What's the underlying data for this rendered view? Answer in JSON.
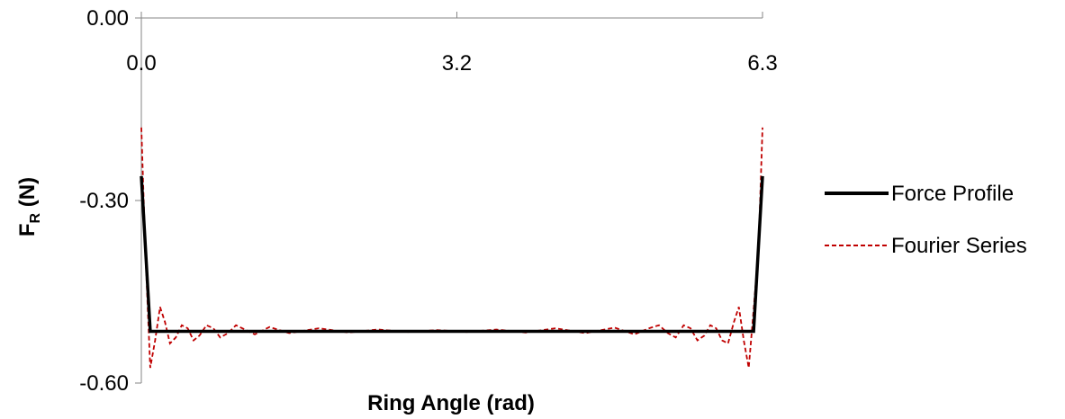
{
  "chart_data": {
    "type": "line",
    "xlabel": "Ring Angle (rad)",
    "ylabel": {
      "main": "F",
      "sub": "R",
      "rest": " (N)"
    },
    "xlim": [
      0,
      6.3
    ],
    "ylim": [
      -0.6,
      0.0
    ],
    "x_ticks": [
      {
        "value": 0.0,
        "label": "0.0"
      },
      {
        "value": 3.2,
        "label": "3.2"
      },
      {
        "value": 6.3,
        "label": "6.3"
      }
    ],
    "y_ticks": [
      {
        "value": 0.0,
        "label": "0.00"
      },
      {
        "value": -0.3,
        "label": "-0.30"
      },
      {
        "value": -0.6,
        "label": "-0.60"
      }
    ],
    "grid": false,
    "legend_position": "right",
    "series": [
      {
        "name": "Force Profile",
        "color": "#000000",
        "style": "solid",
        "x": [
          0.0,
          0.09,
          6.21,
          6.3
        ],
        "y": [
          -0.26,
          -0.515,
          -0.515,
          -0.26
        ]
      },
      {
        "name": "Fourier Series",
        "color": "#c00000",
        "style": "dashed",
        "x": [
          0.0,
          0.04,
          0.09,
          0.14,
          0.19,
          0.24,
          0.29,
          0.35,
          0.41,
          0.47,
          0.53,
          0.59,
          0.66,
          0.73,
          0.8,
          0.88,
          0.96,
          1.05,
          1.15,
          1.3,
          1.5,
          1.8,
          2.1,
          2.4,
          2.7,
          3.0,
          3.3,
          3.6,
          3.9,
          4.2,
          4.5,
          4.8,
          5.0,
          5.15,
          5.25,
          5.34,
          5.42,
          5.5,
          5.57,
          5.64,
          5.71,
          5.77,
          5.83,
          5.89,
          5.95,
          6.01,
          6.06,
          6.11,
          6.16,
          6.21,
          6.26,
          6.3
        ],
        "y": [
          -0.18,
          -0.38,
          -0.575,
          -0.53,
          -0.475,
          -0.5,
          -0.535,
          -0.525,
          -0.505,
          -0.51,
          -0.53,
          -0.522,
          -0.505,
          -0.51,
          -0.525,
          -0.518,
          -0.505,
          -0.512,
          -0.52,
          -0.508,
          -0.518,
          -0.51,
          -0.517,
          -0.512,
          -0.516,
          -0.513,
          -0.516,
          -0.512,
          -0.517,
          -0.51,
          -0.518,
          -0.509,
          -0.52,
          -0.51,
          -0.505,
          -0.518,
          -0.525,
          -0.505,
          -0.51,
          -0.53,
          -0.522,
          -0.505,
          -0.51,
          -0.53,
          -0.535,
          -0.5,
          -0.475,
          -0.53,
          -0.575,
          -0.48,
          -0.38,
          -0.18
        ]
      }
    ]
  }
}
